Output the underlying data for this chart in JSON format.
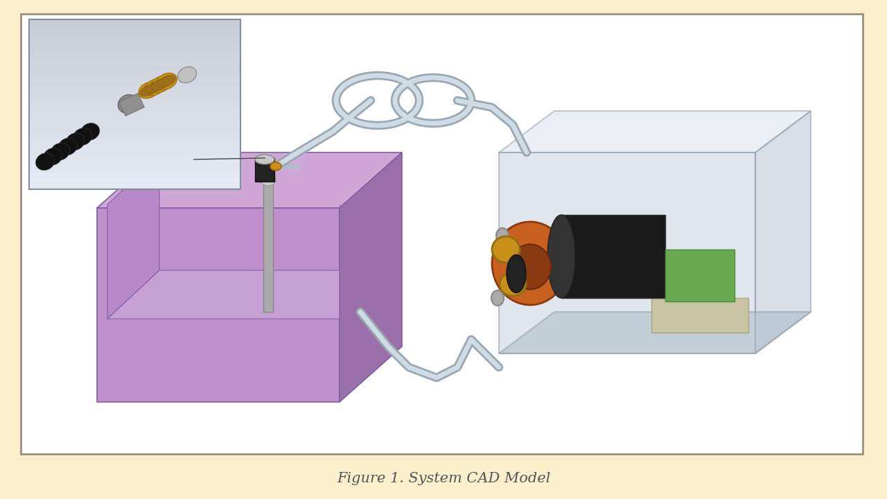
{
  "background_color": "#faeecb",
  "border_color": "#9a9080",
  "border_linewidth": 2.0,
  "caption": "Figure 1. System CAD Model",
  "caption_color": "#555555",
  "caption_fontsize": 15,
  "caption_style": "italic",
  "fig_width": 12.8,
  "fig_height": 7.2,
  "inner_bg": "#ffffff",
  "purple_light": "#c89ad0",
  "purple_mid": "#b080c0",
  "purple_dark": "#8060a0",
  "purple_shadow": "#6a4a8a",
  "tube_outer": "#9aa8b4",
  "tube_inner": "#c8d4dc",
  "pump_box_face": "#bcc8d4",
  "pump_box_edge": "#8898a8",
  "motor_color": "#222222",
  "brass_outer": "#c89018",
  "brass_inner": "#a06808",
  "orange_rotor": "#c86020",
  "green_pcb": "#6aaa50",
  "pcb_base": "#c8c4a8",
  "inset_bg_top": "#d8dce8",
  "inset_bg_bot": "#a8aab8",
  "arrow_color": "#444444"
}
